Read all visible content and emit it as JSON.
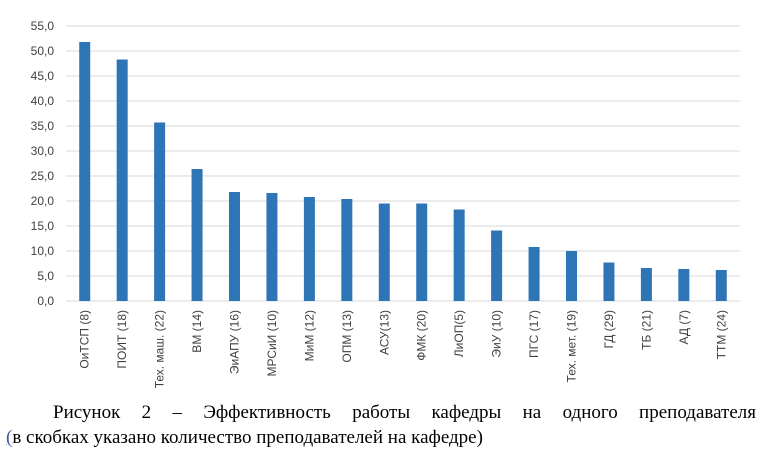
{
  "chart_data": {
    "type": "bar",
    "categories": [
      "ОиТСП (8)",
      "ПОИТ (18)",
      "Тех. маш. (22)",
      "ВМ (14)",
      "ЭиАПУ (16)",
      "МРСиИ (10)",
      "МиМ (12)",
      "ОПМ (13)",
      "АСУ(13)",
      "ФМК (20)",
      "ЛиОП(5)",
      "ЭиУ (10)",
      "ПГС (17)",
      "Тех. мет. (19)",
      "ГД (29)",
      "ТБ (21)",
      "АД (7)",
      "ТТМ (24)"
    ],
    "values": [
      51.8,
      48.3,
      35.7,
      26.4,
      21.8,
      21.6,
      20.8,
      20.4,
      19.5,
      19.5,
      18.3,
      14.1,
      10.8,
      10.0,
      7.7,
      6.6,
      6.4,
      6.2
    ],
    "yticks": [
      "0,0",
      "5,0",
      "10,0",
      "15,0",
      "20,0",
      "25,0",
      "30,0",
      "35,0",
      "40,0",
      "45,0",
      "50,0",
      "55,0"
    ],
    "ylim": [
      0,
      55
    ],
    "grid": true,
    "bar_color": "#2e75b6",
    "grid_color": "#d9d9d9"
  },
  "caption": {
    "line1": "Рисунок 2 – Эффективность работы кафедры на одного преподавателя",
    "line2_mark": "(",
    "line2_rest": "в скобках указано количество преподавателей на кафедре)"
  }
}
